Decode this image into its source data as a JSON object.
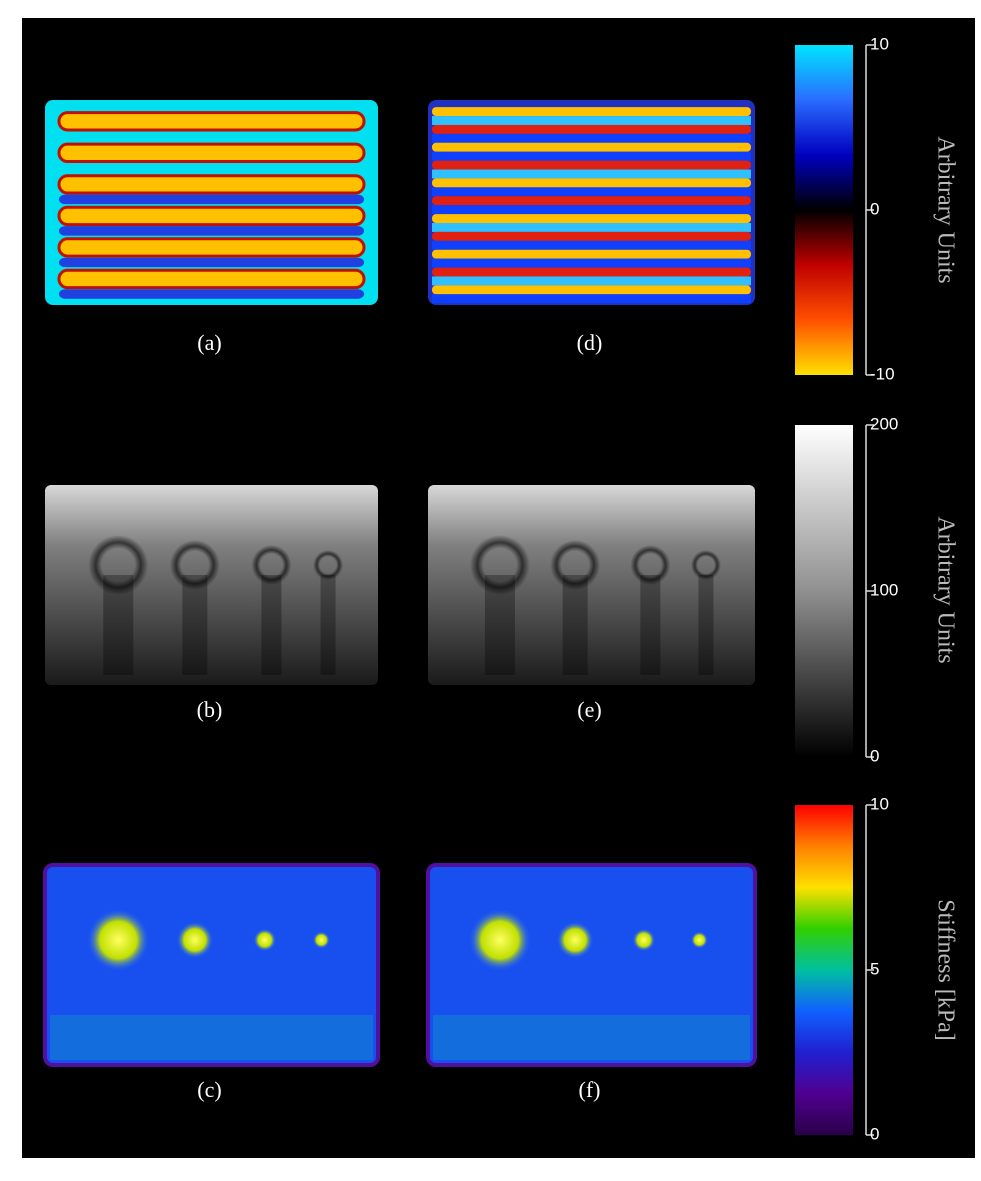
{
  "panels": [
    {
      "label": "(a)",
      "kind": "wave"
    },
    {
      "label": "(d)",
      "kind": "wave-fine"
    },
    {
      "label": "(b)",
      "kind": "magnitude"
    },
    {
      "label": "(e)",
      "kind": "magnitude"
    },
    {
      "label": "(c)",
      "kind": "stiffness"
    },
    {
      "label": "(f)",
      "kind": "stiffness"
    }
  ],
  "colorbars": [
    {
      "title": "Arbitrary Units",
      "lim": [
        -10,
        10
      ],
      "ticks": [
        10,
        0,
        -10
      ],
      "colors": [
        "#00e5ff",
        "#2a6cff",
        "#0000c0",
        "#000000",
        "#c00000",
        "#ff5000",
        "#ffe000"
      ]
    },
    {
      "title": "Arbitrary Units",
      "lim": [
        0,
        200
      ],
      "ticks": [
        200,
        100,
        0
      ],
      "colors": [
        "#ffffff",
        "#909090",
        "#000000"
      ]
    },
    {
      "title": "Stiffness [kPa]",
      "lim": [
        0,
        10
      ],
      "ticks": [
        10,
        5,
        0
      ],
      "colors": [
        "#ff0000",
        "#ff8000",
        "#ffe000",
        "#30d000",
        "#00c0a0",
        "#1060ff",
        "#2020d0",
        "#500090",
        "#2a004a"
      ]
    }
  ]
}
